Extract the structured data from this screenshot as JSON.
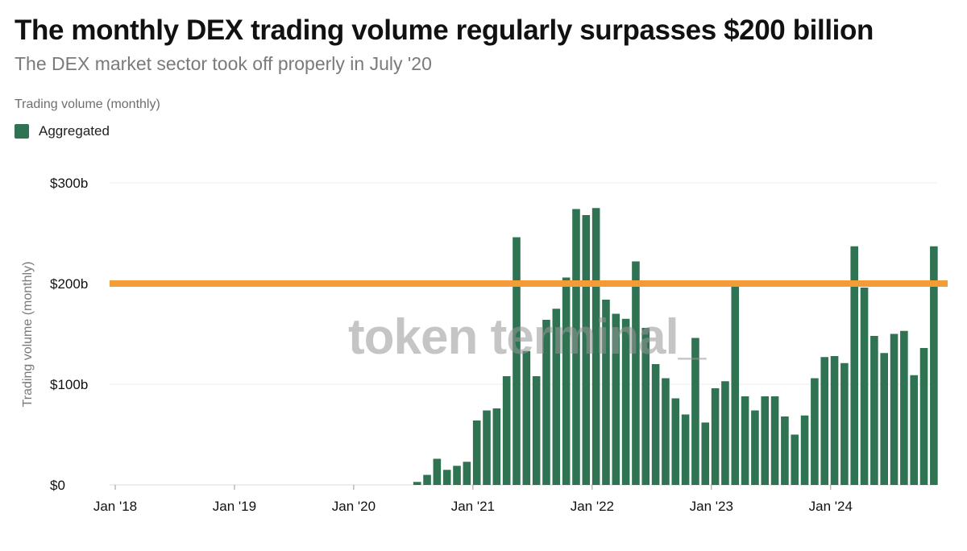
{
  "header": {
    "title": "The monthly DEX trading volume regularly surpasses $200 billion",
    "subtitle": "The DEX market sector took off properly in July '20",
    "series_label": "Trading volume (monthly)"
  },
  "legend": {
    "label": "Aggregated"
  },
  "watermark": "token terminal_",
  "colors": {
    "bar": "#2f7352",
    "threshold": "#f29c38",
    "grid": "#eeeeee"
  },
  "chart_data": {
    "type": "bar",
    "title": "The monthly DEX trading volume regularly surpasses $200 billion",
    "subtitle": "The DEX market sector took off properly in July '20",
    "xlabel": "",
    "ylabel": "Trading volume (monthly)",
    "ylim": [
      0,
      300
    ],
    "y_unit": "billion USD",
    "yticks": [
      0,
      100,
      200,
      300
    ],
    "ytick_labels": [
      "$0",
      "$100b",
      "$200b",
      "$300b"
    ],
    "xtick_labels": [
      "Jan '18",
      "Jan '19",
      "Jan '20",
      "Jan '21",
      "Jan '22",
      "Jan '23",
      "Jan '24"
    ],
    "xtick_month_index": [
      0,
      12,
      24,
      36,
      48,
      60,
      72
    ],
    "first_bar_month_index": 30,
    "total_months": 84,
    "series": [
      {
        "name": "Aggregated",
        "start": "Jul '20",
        "values": [
          3,
          10,
          26,
          15,
          19,
          23,
          64,
          74,
          76,
          108,
          246,
          133,
          108,
          164,
          175,
          206,
          274,
          268,
          275,
          184,
          170,
          165,
          222,
          156,
          120,
          106,
          86,
          70,
          146,
          62,
          96,
          103,
          198,
          88,
          74,
          88,
          88,
          68,
          50,
          69,
          106,
          127,
          128,
          121,
          237,
          196,
          148,
          131,
          150,
          153,
          109,
          136,
          237
        ]
      }
    ],
    "threshold_line": {
      "value": 200,
      "label": "$200b"
    },
    "legend_position": "top-left",
    "grid": true
  }
}
